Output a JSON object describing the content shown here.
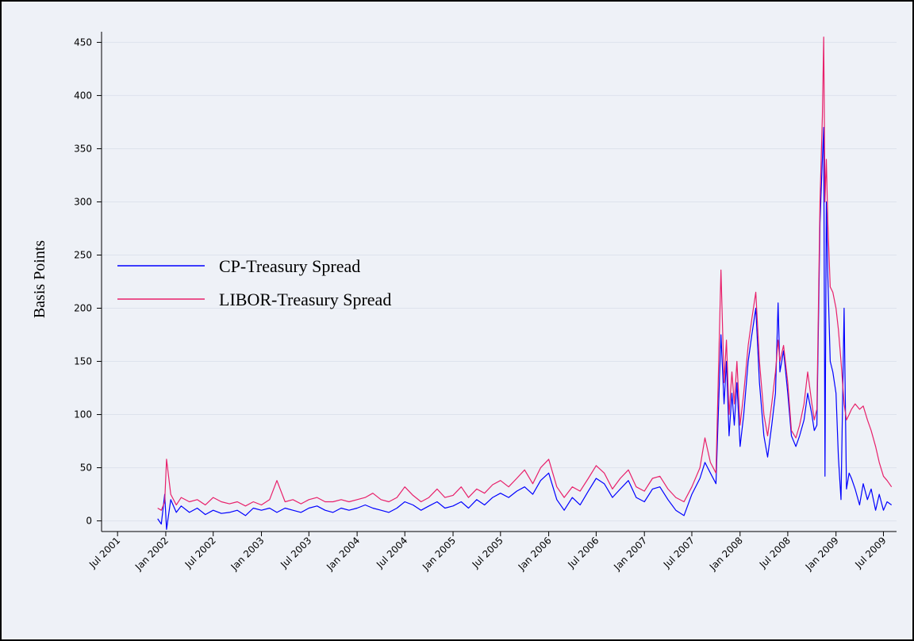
{
  "chart_data": {
    "type": "line",
    "title": "",
    "xlabel": "",
    "ylabel": "Basis Points",
    "ylim": [
      -10,
      460
    ],
    "yticks": [
      0,
      50,
      100,
      150,
      200,
      250,
      300,
      350,
      400,
      450
    ],
    "xlim": [
      "2001-05-01",
      "2009-08-20"
    ],
    "xticks": [
      {
        "date": "2001-07-01",
        "label": "Jul 2001"
      },
      {
        "date": "2002-01-01",
        "label": "Jan 2002"
      },
      {
        "date": "2002-07-01",
        "label": "Jul 2002"
      },
      {
        "date": "2003-01-01",
        "label": "Jan 2003"
      },
      {
        "date": "2003-07-01",
        "label": "Jul 2003"
      },
      {
        "date": "2004-01-01",
        "label": "Jan 2004"
      },
      {
        "date": "2004-07-01",
        "label": "Jul 2004"
      },
      {
        "date": "2005-01-01",
        "label": "Jan 2005"
      },
      {
        "date": "2005-07-01",
        "label": "Jul 2005"
      },
      {
        "date": "2006-01-01",
        "label": "Jan 2006"
      },
      {
        "date": "2006-07-01",
        "label": "Jul 2006"
      },
      {
        "date": "2007-01-01",
        "label": "Jan 2007"
      },
      {
        "date": "2007-07-01",
        "label": "Jul 2007"
      },
      {
        "date": "2008-01-01",
        "label": "Jan 2008"
      },
      {
        "date": "2008-07-01",
        "label": "Jul 2008"
      },
      {
        "date": "2009-01-01",
        "label": "Jan 2009"
      },
      {
        "date": "2009-07-01",
        "label": "Jul 2009"
      }
    ],
    "grid": true,
    "legend_position": "left-middle",
    "series": [
      {
        "name": "CP-Treasury Spread",
        "color": "#0000ff",
        "points": [
          [
            "2001-12-01",
            2
          ],
          [
            "2001-12-15",
            -3
          ],
          [
            "2001-12-28",
            25
          ],
          [
            "2002-01-04",
            -8
          ],
          [
            "2002-01-20",
            20
          ],
          [
            "2002-02-10",
            8
          ],
          [
            "2002-03-01",
            14
          ],
          [
            "2002-04-01",
            8
          ],
          [
            "2002-05-01",
            12
          ],
          [
            "2002-06-01",
            6
          ],
          [
            "2002-07-01",
            10
          ],
          [
            "2002-08-01",
            7
          ],
          [
            "2002-09-01",
            8
          ],
          [
            "2002-10-01",
            10
          ],
          [
            "2002-11-01",
            5
          ],
          [
            "2002-12-01",
            12
          ],
          [
            "2003-01-01",
            10
          ],
          [
            "2003-02-01",
            12
          ],
          [
            "2003-03-01",
            8
          ],
          [
            "2003-04-01",
            12
          ],
          [
            "2003-05-01",
            10
          ],
          [
            "2003-06-01",
            8
          ],
          [
            "2003-07-01",
            12
          ],
          [
            "2003-08-01",
            14
          ],
          [
            "2003-09-01",
            10
          ],
          [
            "2003-10-01",
            8
          ],
          [
            "2003-11-01",
            12
          ],
          [
            "2003-12-01",
            10
          ],
          [
            "2004-01-01",
            12
          ],
          [
            "2004-02-01",
            15
          ],
          [
            "2004-03-01",
            12
          ],
          [
            "2004-04-01",
            10
          ],
          [
            "2004-05-01",
            8
          ],
          [
            "2004-06-01",
            12
          ],
          [
            "2004-07-01",
            18
          ],
          [
            "2004-08-01",
            15
          ],
          [
            "2004-09-01",
            10
          ],
          [
            "2004-10-01",
            14
          ],
          [
            "2004-11-01",
            18
          ],
          [
            "2004-12-01",
            12
          ],
          [
            "2005-01-01",
            14
          ],
          [
            "2005-02-01",
            18
          ],
          [
            "2005-03-01",
            12
          ],
          [
            "2005-04-01",
            20
          ],
          [
            "2005-05-01",
            15
          ],
          [
            "2005-06-01",
            22
          ],
          [
            "2005-07-01",
            26
          ],
          [
            "2005-08-01",
            22
          ],
          [
            "2005-09-01",
            28
          ],
          [
            "2005-10-01",
            32
          ],
          [
            "2005-11-01",
            25
          ],
          [
            "2005-12-01",
            38
          ],
          [
            "2006-01-01",
            45
          ],
          [
            "2006-02-01",
            20
          ],
          [
            "2006-03-01",
            10
          ],
          [
            "2006-04-01",
            22
          ],
          [
            "2006-05-01",
            15
          ],
          [
            "2006-06-01",
            28
          ],
          [
            "2006-07-01",
            40
          ],
          [
            "2006-08-01",
            35
          ],
          [
            "2006-09-01",
            22
          ],
          [
            "2006-10-01",
            30
          ],
          [
            "2006-11-01",
            38
          ],
          [
            "2006-12-01",
            22
          ],
          [
            "2007-01-01",
            18
          ],
          [
            "2007-02-01",
            30
          ],
          [
            "2007-03-01",
            32
          ],
          [
            "2007-04-01",
            20
          ],
          [
            "2007-05-01",
            10
          ],
          [
            "2007-06-01",
            5
          ],
          [
            "2007-07-01",
            25
          ],
          [
            "2007-08-01",
            40
          ],
          [
            "2007-08-20",
            55
          ],
          [
            "2007-09-10",
            45
          ],
          [
            "2007-10-01",
            35
          ],
          [
            "2007-10-20",
            175
          ],
          [
            "2007-11-01",
            110
          ],
          [
            "2007-11-10",
            150
          ],
          [
            "2007-11-20",
            80
          ],
          [
            "2007-12-01",
            120
          ],
          [
            "2007-12-10",
            90
          ],
          [
            "2007-12-20",
            130
          ],
          [
            "2008-01-01",
            70
          ],
          [
            "2008-01-15",
            100
          ],
          [
            "2008-02-01",
            150
          ],
          [
            "2008-02-15",
            175
          ],
          [
            "2008-03-01",
            200
          ],
          [
            "2008-03-15",
            130
          ],
          [
            "2008-04-01",
            80
          ],
          [
            "2008-04-15",
            60
          ],
          [
            "2008-05-01",
            90
          ],
          [
            "2008-05-15",
            120
          ],
          [
            "2008-05-25",
            205
          ],
          [
            "2008-06-01",
            140
          ],
          [
            "2008-06-15",
            160
          ],
          [
            "2008-07-01",
            120
          ],
          [
            "2008-07-15",
            80
          ],
          [
            "2008-08-01",
            70
          ],
          [
            "2008-08-15",
            80
          ],
          [
            "2008-09-01",
            95
          ],
          [
            "2008-09-15",
            120
          ],
          [
            "2008-10-01",
            100
          ],
          [
            "2008-10-10",
            85
          ],
          [
            "2008-10-20",
            90
          ],
          [
            "2008-11-01",
            280
          ],
          [
            "2008-11-10",
            340
          ],
          [
            "2008-11-15",
            370
          ],
          [
            "2008-11-20",
            42
          ],
          [
            "2008-11-25",
            300
          ],
          [
            "2008-12-01",
            230
          ],
          [
            "2008-12-10",
            150
          ],
          [
            "2008-12-20",
            140
          ],
          [
            "2009-01-01",
            120
          ],
          [
            "2009-01-10",
            60
          ],
          [
            "2009-01-20",
            20
          ],
          [
            "2009-02-01",
            200
          ],
          [
            "2009-02-10",
            30
          ],
          [
            "2009-02-20",
            45
          ],
          [
            "2009-03-01",
            40
          ],
          [
            "2009-03-15",
            30
          ],
          [
            "2009-04-01",
            15
          ],
          [
            "2009-04-15",
            35
          ],
          [
            "2009-05-01",
            20
          ],
          [
            "2009-05-15",
            30
          ],
          [
            "2009-06-01",
            10
          ],
          [
            "2009-06-15",
            25
          ],
          [
            "2009-07-01",
            10
          ],
          [
            "2009-07-15",
            18
          ],
          [
            "2009-08-01",
            15
          ]
        ]
      },
      {
        "name": "LIBOR-Treasury Spread",
        "color": "#e8206a",
        "points": [
          [
            "2001-12-01",
            12
          ],
          [
            "2001-12-15",
            10
          ],
          [
            "2001-12-28",
            18
          ],
          [
            "2002-01-04",
            58
          ],
          [
            "2002-01-20",
            25
          ],
          [
            "2002-02-10",
            15
          ],
          [
            "2002-03-01",
            22
          ],
          [
            "2002-04-01",
            18
          ],
          [
            "2002-05-01",
            20
          ],
          [
            "2002-06-01",
            15
          ],
          [
            "2002-07-01",
            22
          ],
          [
            "2002-08-01",
            18
          ],
          [
            "2002-09-01",
            16
          ],
          [
            "2002-10-01",
            18
          ],
          [
            "2002-11-01",
            14
          ],
          [
            "2002-12-01",
            18
          ],
          [
            "2003-01-01",
            15
          ],
          [
            "2003-02-01",
            20
          ],
          [
            "2003-03-01",
            38
          ],
          [
            "2003-04-01",
            18
          ],
          [
            "2003-05-01",
            20
          ],
          [
            "2003-06-01",
            16
          ],
          [
            "2003-07-01",
            20
          ],
          [
            "2003-08-01",
            22
          ],
          [
            "2003-09-01",
            18
          ],
          [
            "2003-10-01",
            18
          ],
          [
            "2003-11-01",
            20
          ],
          [
            "2003-12-01",
            18
          ],
          [
            "2004-01-01",
            20
          ],
          [
            "2004-02-01",
            22
          ],
          [
            "2004-03-01",
            26
          ],
          [
            "2004-04-01",
            20
          ],
          [
            "2004-05-01",
            18
          ],
          [
            "2004-06-01",
            22
          ],
          [
            "2004-07-01",
            32
          ],
          [
            "2004-08-01",
            24
          ],
          [
            "2004-09-01",
            18
          ],
          [
            "2004-10-01",
            22
          ],
          [
            "2004-11-01",
            30
          ],
          [
            "2004-12-01",
            22
          ],
          [
            "2005-01-01",
            24
          ],
          [
            "2005-02-01",
            32
          ],
          [
            "2005-03-01",
            22
          ],
          [
            "2005-04-01",
            30
          ],
          [
            "2005-05-01",
            26
          ],
          [
            "2005-06-01",
            34
          ],
          [
            "2005-07-01",
            38
          ],
          [
            "2005-08-01",
            32
          ],
          [
            "2005-09-01",
            40
          ],
          [
            "2005-10-01",
            48
          ],
          [
            "2005-11-01",
            35
          ],
          [
            "2005-12-01",
            50
          ],
          [
            "2006-01-01",
            58
          ],
          [
            "2006-02-01",
            32
          ],
          [
            "2006-03-01",
            22
          ],
          [
            "2006-04-01",
            32
          ],
          [
            "2006-05-01",
            28
          ],
          [
            "2006-06-01",
            40
          ],
          [
            "2006-07-01",
            52
          ],
          [
            "2006-08-01",
            45
          ],
          [
            "2006-09-01",
            30
          ],
          [
            "2006-10-01",
            40
          ],
          [
            "2006-11-01",
            48
          ],
          [
            "2006-12-01",
            32
          ],
          [
            "2007-01-01",
            28
          ],
          [
            "2007-02-01",
            40
          ],
          [
            "2007-03-01",
            42
          ],
          [
            "2007-04-01",
            30
          ],
          [
            "2007-05-01",
            22
          ],
          [
            "2007-06-01",
            18
          ],
          [
            "2007-07-01",
            32
          ],
          [
            "2007-08-01",
            50
          ],
          [
            "2007-08-20",
            78
          ],
          [
            "2007-09-10",
            55
          ],
          [
            "2007-10-01",
            45
          ],
          [
            "2007-10-20",
            236
          ],
          [
            "2007-11-01",
            130
          ],
          [
            "2007-11-10",
            170
          ],
          [
            "2007-11-20",
            100
          ],
          [
            "2007-12-01",
            140
          ],
          [
            "2007-12-10",
            110
          ],
          [
            "2007-12-20",
            150
          ],
          [
            "2008-01-01",
            90
          ],
          [
            "2008-01-15",
            120
          ],
          [
            "2008-02-01",
            165
          ],
          [
            "2008-02-15",
            190
          ],
          [
            "2008-03-01",
            215
          ],
          [
            "2008-03-15",
            150
          ],
          [
            "2008-04-01",
            100
          ],
          [
            "2008-04-15",
            80
          ],
          [
            "2008-05-01",
            110
          ],
          [
            "2008-05-15",
            140
          ],
          [
            "2008-05-25",
            170
          ],
          [
            "2008-06-01",
            150
          ],
          [
            "2008-06-15",
            165
          ],
          [
            "2008-07-01",
            130
          ],
          [
            "2008-07-15",
            85
          ],
          [
            "2008-08-01",
            78
          ],
          [
            "2008-08-15",
            90
          ],
          [
            "2008-09-01",
            110
          ],
          [
            "2008-09-15",
            140
          ],
          [
            "2008-10-01",
            110
          ],
          [
            "2008-10-10",
            95
          ],
          [
            "2008-10-20",
            105
          ],
          [
            "2008-11-01",
            300
          ],
          [
            "2008-11-10",
            380
          ],
          [
            "2008-11-15",
            455
          ],
          [
            "2008-11-20",
            300
          ],
          [
            "2008-11-25",
            340
          ],
          [
            "2008-12-01",
            280
          ],
          [
            "2008-12-10",
            220
          ],
          [
            "2008-12-20",
            215
          ],
          [
            "2009-01-01",
            200
          ],
          [
            "2009-01-10",
            180
          ],
          [
            "2009-01-20",
            150
          ],
          [
            "2009-02-01",
            110
          ],
          [
            "2009-02-10",
            95
          ],
          [
            "2009-02-20",
            100
          ],
          [
            "2009-03-01",
            105
          ],
          [
            "2009-03-15",
            110
          ],
          [
            "2009-04-01",
            105
          ],
          [
            "2009-04-15",
            108
          ],
          [
            "2009-05-01",
            95
          ],
          [
            "2009-05-15",
            85
          ],
          [
            "2009-06-01",
            70
          ],
          [
            "2009-06-15",
            55
          ],
          [
            "2009-07-01",
            42
          ],
          [
            "2009-07-15",
            38
          ],
          [
            "2009-08-01",
            32
          ]
        ]
      }
    ]
  }
}
